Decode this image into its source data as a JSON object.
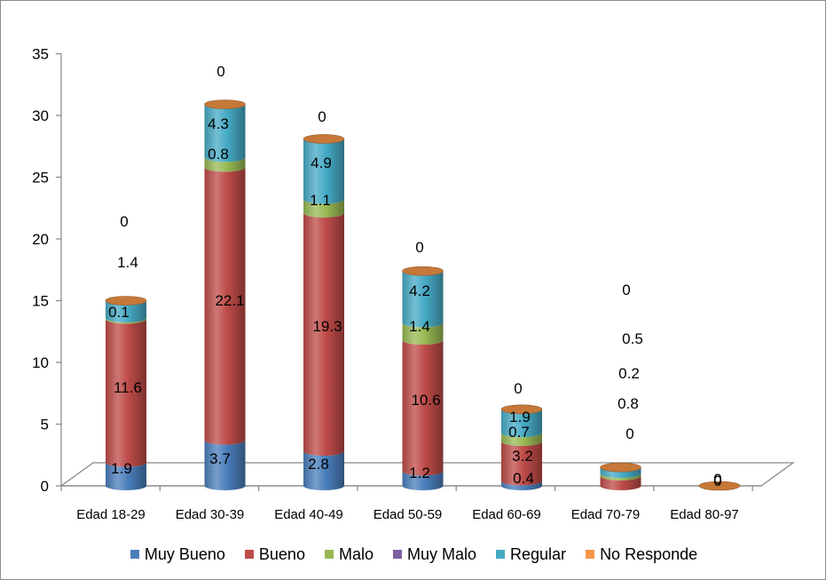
{
  "chart_data": {
    "type": "bar",
    "stacked": true,
    "style": "3d-cylinder",
    "categories": [
      "Edad 18-29",
      "Edad 30-39",
      "Edad 40-49",
      "Edad 50-59",
      "Edad 60-69",
      "Edad 70-79",
      "Edad 80-97"
    ],
    "series": [
      {
        "name": "Muy Bueno",
        "color": "#4a7ebb",
        "values": [
          1.9,
          3.7,
          2.8,
          1.2,
          0.4,
          0,
          0
        ]
      },
      {
        "name": "Bueno",
        "color": "#be4b48",
        "values": [
          11.6,
          22.1,
          19.3,
          10.6,
          3.2,
          0.8,
          0
        ]
      },
      {
        "name": "Malo",
        "color": "#98b954",
        "values": [
          0.1,
          0.8,
          1.1,
          1.4,
          0.7,
          0.2,
          0
        ]
      },
      {
        "name": "Muy Malo",
        "color": "#7d60a0",
        "values": [
          0,
          0,
          0,
          0,
          0,
          0,
          0
        ]
      },
      {
        "name": "Regular",
        "color": "#46aac5",
        "values": [
          1.4,
          4.3,
          4.9,
          4.2,
          1.9,
          0.5,
          0
        ]
      },
      {
        "name": "No Responde",
        "color": "#f79646",
        "values": [
          0,
          0,
          0,
          0,
          0,
          0,
          0
        ]
      }
    ],
    "labels": [
      [
        {
          "s": "Muy Bueno",
          "t": "1.9"
        },
        {
          "s": "Bueno",
          "t": "11.6"
        },
        {
          "s": "Malo",
          "t": "0.1"
        },
        {
          "s": "Regular",
          "t": "1.4"
        },
        {
          "s": "No Responde",
          "t": "0"
        }
      ],
      [
        {
          "s": "Muy Bueno",
          "t": "3.7"
        },
        {
          "s": "Bueno",
          "t": "22.1"
        },
        {
          "s": "Malo",
          "t": "0.8"
        },
        {
          "s": "Regular",
          "t": "4.3"
        },
        {
          "s": "No Responde",
          "t": "0"
        }
      ],
      [
        {
          "s": "Muy Bueno",
          "t": "2.8"
        },
        {
          "s": "Bueno",
          "t": "19.3"
        },
        {
          "s": "Malo",
          "t": "1.1"
        },
        {
          "s": "Regular",
          "t": "4.9"
        },
        {
          "s": "No Responde",
          "t": "0"
        }
      ],
      [
        {
          "s": "Muy Bueno",
          "t": "1.2"
        },
        {
          "s": "Bueno",
          "t": "10.6"
        },
        {
          "s": "Malo",
          "t": "1.4"
        },
        {
          "s": "Regular",
          "t": "4.2"
        },
        {
          "s": "No Responde",
          "t": "0"
        }
      ],
      [
        {
          "s": "Muy Bueno",
          "t": "0.4"
        },
        {
          "s": "Bueno",
          "t": "3.2"
        },
        {
          "s": "Malo",
          "t": "0.7"
        },
        {
          "s": "Regular",
          "t": "1.9"
        },
        {
          "s": "No Responde",
          "t": "0"
        }
      ],
      [
        {
          "s": "Muy Bueno",
          "t": "0"
        },
        {
          "s": "Bueno",
          "t": "0.8"
        },
        {
          "s": "Malo",
          "t": "0.2"
        },
        {
          "s": "Regular",
          "t": "0.5"
        },
        {
          "s": "No Responde",
          "t": "0"
        }
      ],
      [
        {
          "s": "Muy Bueno",
          "t": "0"
        },
        {
          "s": "No Responde",
          "t": "0"
        }
      ]
    ],
    "ylim": [
      0,
      35
    ],
    "yticks": [
      0,
      5,
      10,
      15,
      20,
      25,
      30,
      35
    ],
    "grid": false,
    "legend": "bottom",
    "title": "",
    "xlabel": "",
    "ylabel": ""
  }
}
